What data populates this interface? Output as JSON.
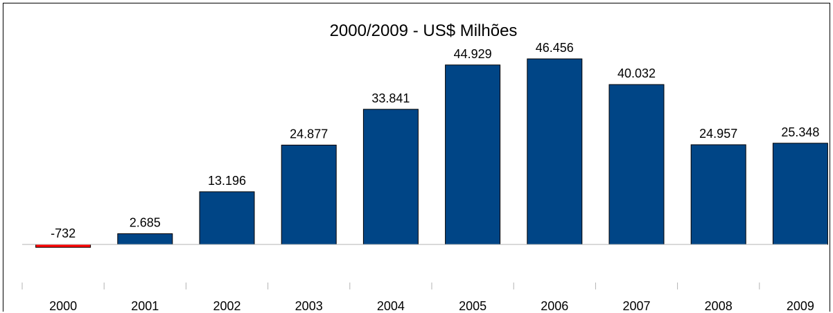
{
  "chart_data": {
    "type": "bar",
    "title": "2000/2009 - US$ Milhões",
    "xlabel": "",
    "ylabel": "",
    "categories": [
      "2000",
      "2001",
      "2002",
      "2003",
      "2004",
      "2005",
      "2006",
      "2007",
      "2008",
      "2009"
    ],
    "values": [
      -732,
      2685,
      13196,
      24877,
      33841,
      44929,
      46456,
      40032,
      24957,
      25348
    ],
    "value_labels": [
      "-732",
      "2.685",
      "13.196",
      "24.877",
      "33.841",
      "44.929",
      "46.456",
      "40.032",
      "24.957",
      "25.348"
    ],
    "colors": {
      "positive": "#004586",
      "negative": "#ff0000"
    },
    "grid": false,
    "legend": "none"
  }
}
